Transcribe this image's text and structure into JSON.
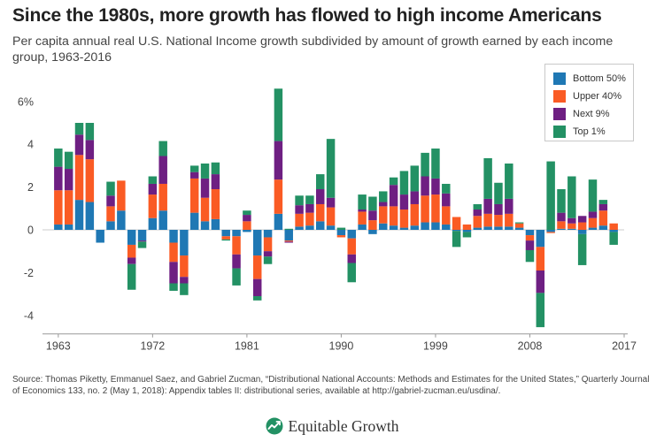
{
  "title": "Since the 1980s, more growth has flowed to high income Americans",
  "subtitle": "Per capita annual real U.S. National Income growth subdivided by amount of growth earned by each income group, 1963-2016",
  "source": "Source: Thomas Piketty, Emmanuel Saez, and Gabriel Zucman, “Distributional National Accounts: Methods and Estimates for the United States,” Quarterly Journal of Economics 133, no. 2 (May 1, 2018): Appendix tables II: distributional series, available at http://gabriel-zucman.eu/usdina/.",
  "brand": "Equitable Growth",
  "colors": {
    "bottom50": "#1f78b4",
    "upper40": "#fa5b24",
    "next9": "#6e1f82",
    "top1": "#239164",
    "axis": "#999999",
    "tick_label": "#444444"
  },
  "chart_data": {
    "type": "bar",
    "stacked": true,
    "x_ticks": [
      1963,
      1972,
      1981,
      1990,
      1999,
      2008,
      2017
    ],
    "y_ticks": [
      "-4",
      "-2",
      "0",
      "2",
      "4",
      "6%"
    ],
    "ylim": [
      -4.7,
      6.6
    ],
    "xlim": [
      1962,
      2017
    ],
    "legend_position": "top-right",
    "years": [
      1963,
      1964,
      1965,
      1966,
      1967,
      1968,
      1969,
      1970,
      1971,
      1972,
      1973,
      1974,
      1975,
      1976,
      1977,
      1978,
      1979,
      1980,
      1981,
      1982,
      1983,
      1984,
      1985,
      1986,
      1987,
      1988,
      1989,
      1990,
      1991,
      1992,
      1993,
      1994,
      1995,
      1996,
      1997,
      1998,
      1999,
      2000,
      2001,
      2002,
      2003,
      2004,
      2005,
      2006,
      2007,
      2008,
      2009,
      2010,
      2011,
      2012,
      2013,
      2014,
      2015,
      2016
    ],
    "series": [
      {
        "name": "Bottom 50%",
        "key": "bottom50",
        "values": [
          0.25,
          0.25,
          1.4,
          1.3,
          -0.6,
          0.4,
          0.9,
          -0.7,
          -0.5,
          0.55,
          0.9,
          -0.6,
          -1.2,
          0.8,
          0.4,
          0.5,
          -0.3,
          -0.3,
          -0.1,
          -1.2,
          -0.35,
          0.75,
          -0.5,
          0.15,
          0.2,
          0.4,
          0.2,
          -0.25,
          -0.4,
          0.25,
          -0.2,
          0.3,
          0.2,
          0.1,
          0.2,
          0.35,
          0.35,
          0.25,
          -0.05,
          -0.1,
          0.1,
          0.15,
          0.15,
          0.15,
          0.1,
          -0.25,
          -0.8,
          -0.1,
          0.05,
          0.05,
          -0.2,
          0.1,
          0.2,
          -0.1
        ]
      },
      {
        "name": "Upper 40%",
        "key": "upper40",
        "values": [
          1.6,
          1.6,
          2.1,
          2.0,
          0.0,
          0.7,
          1.4,
          -0.6,
          0.0,
          1.1,
          1.25,
          -0.9,
          -1.0,
          1.6,
          1.1,
          1.4,
          -0.15,
          -0.85,
          0.4,
          -1.1,
          -0.65,
          1.6,
          -0.05,
          0.6,
          0.6,
          0.8,
          0.85,
          -0.1,
          -0.75,
          0.6,
          0.45,
          0.8,
          0.9,
          0.85,
          1.0,
          1.25,
          1.3,
          0.85,
          0.6,
          0.25,
          0.55,
          0.6,
          0.55,
          0.6,
          0.2,
          -0.25,
          -1.1,
          -0.05,
          0.35,
          0.25,
          0.35,
          0.45,
          0.7,
          0.3
        ]
      },
      {
        "name": "Next 9%",
        "key": "next9",
        "values": [
          1.1,
          1.0,
          0.95,
          0.9,
          0.0,
          0.5,
          0.0,
          -0.3,
          -0.05,
          0.5,
          1.3,
          -1.0,
          -0.3,
          0.3,
          0.9,
          0.7,
          0.0,
          -0.65,
          0.3,
          -0.8,
          -0.25,
          1.8,
          -0.05,
          0.4,
          0.4,
          0.7,
          0.45,
          0.0,
          -0.4,
          0.1,
          0.45,
          0.2,
          1.0,
          0.7,
          0.6,
          0.9,
          0.75,
          0.6,
          0.0,
          0.0,
          0.3,
          0.7,
          0.5,
          0.7,
          0.0,
          -0.45,
          -1.05,
          0.0,
          0.4,
          0.25,
          0.3,
          0.3,
          0.3,
          0.0
        ]
      },
      {
        "name": "Top 1%",
        "key": "top1",
        "values": [
          0.85,
          0.8,
          0.55,
          0.8,
          0.0,
          0.65,
          0.0,
          -1.2,
          -0.3,
          0.35,
          0.7,
          -0.35,
          -0.55,
          0.3,
          0.7,
          0.55,
          -0.05,
          -0.8,
          0.2,
          -0.2,
          -0.35,
          2.45,
          0.05,
          0.45,
          0.4,
          0.7,
          2.75,
          0.1,
          -0.9,
          0.7,
          0.65,
          0.5,
          0.35,
          1.1,
          1.2,
          1.1,
          1.4,
          0.45,
          -0.75,
          -0.25,
          0.25,
          1.9,
          1.0,
          1.65,
          0.05,
          -0.55,
          -1.6,
          3.2,
          1.1,
          1.95,
          -1.45,
          1.5,
          0.2,
          -0.6
        ]
      }
    ]
  }
}
